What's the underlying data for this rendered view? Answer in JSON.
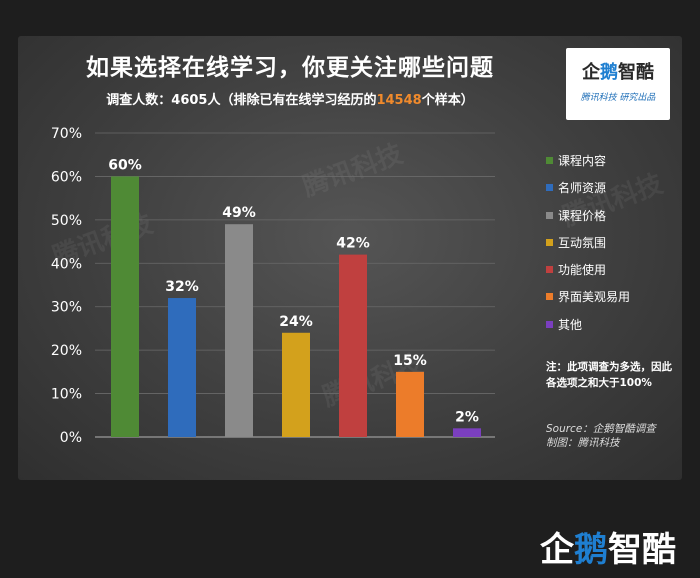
{
  "header": {
    "title": "如果选择在线学习，你更关注哪些问题",
    "subtitle_prefix": "调查人数：4605人（排除已有在线学习经历的",
    "subtitle_highlight": "14548",
    "subtitle_suffix": "个样本）",
    "highlight_color": "#f08a2c"
  },
  "logo": {
    "name_part1": "企",
    "name_part2": "鹅",
    "name_part3": "智酷",
    "sub": "腾讯科技  研究出品"
  },
  "watermark_text": "腾讯科技",
  "note": "注：此项调查为多选，因此各选项之和大于100%",
  "source": {
    "line1": "Source：企鹅智酷调查",
    "line2": "制图：腾讯科技"
  },
  "brand": {
    "part1": "企",
    "part2": "鹅",
    "part3": "智酷"
  },
  "chart_data": {
    "type": "bar",
    "title": "如果选择在线学习，你更关注哪些问题",
    "categories": [
      "课程内容",
      "名师资源",
      "课程价格",
      "互动氛围",
      "功能使用",
      "界面美观易用",
      "其他"
    ],
    "values": [
      60,
      32,
      49,
      24,
      42,
      15,
      2
    ],
    "value_labels": [
      "60%",
      "32%",
      "49%",
      "24%",
      "42%",
      "15%",
      "2%"
    ],
    "colors": [
      "#4f8a35",
      "#2f6cbc",
      "#8a8a8a",
      "#d3a11c",
      "#c0403f",
      "#ec7c2a",
      "#7b3fbf"
    ],
    "ylim": [
      0,
      70
    ],
    "yticks": [
      "0%",
      "10%",
      "20%",
      "30%",
      "40%",
      "50%",
      "60%",
      "70%"
    ],
    "grid": true,
    "legend_position": "right"
  }
}
